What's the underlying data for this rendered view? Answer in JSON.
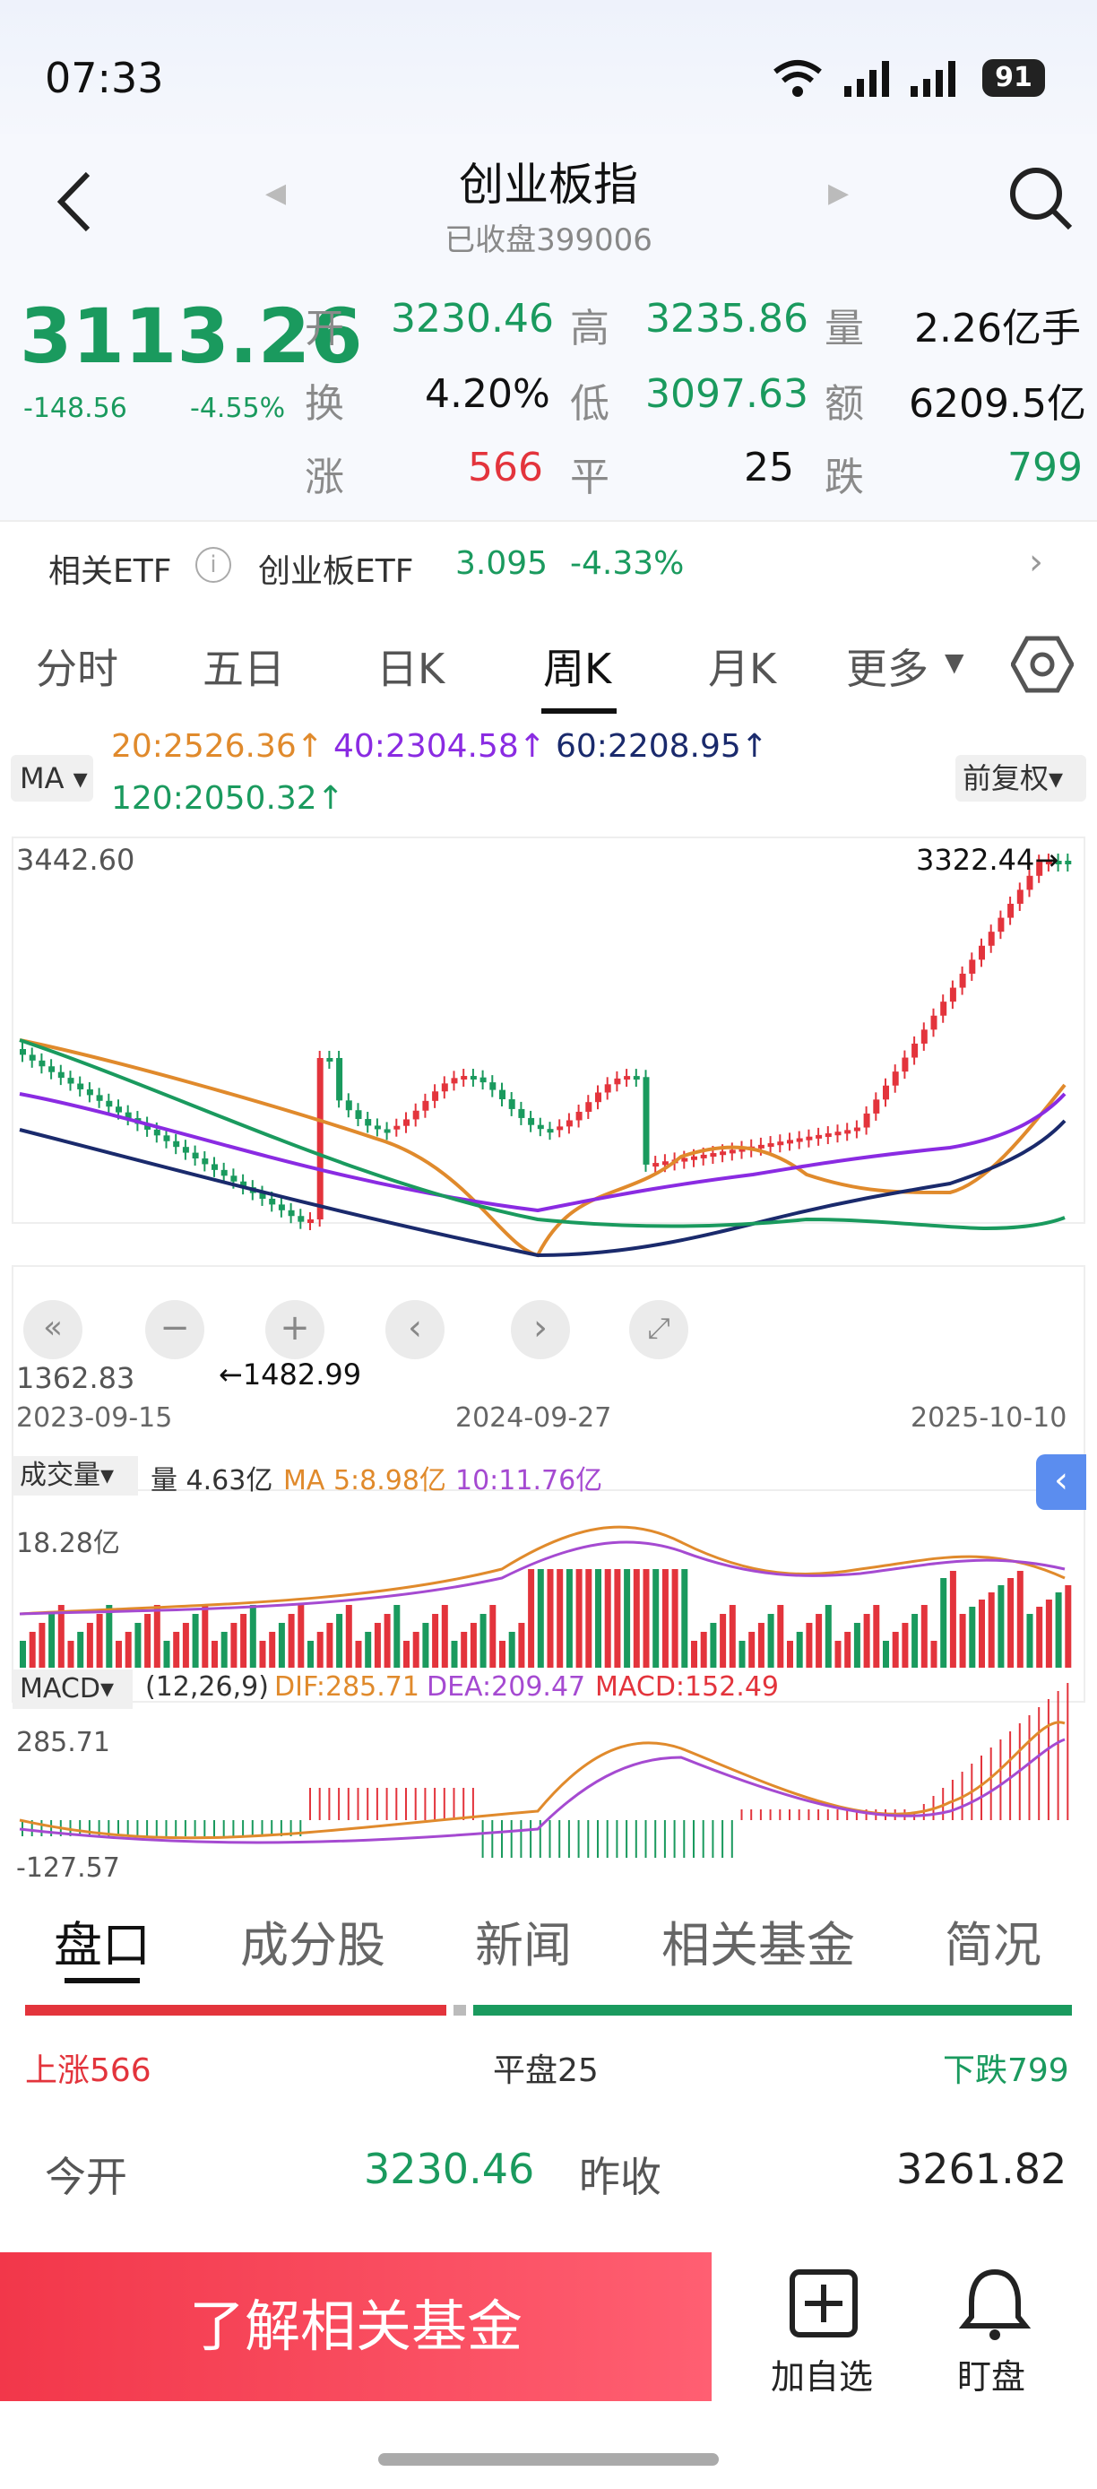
{
  "status": {
    "time": "07:33",
    "battery": "91"
  },
  "header": {
    "title": "创业板指",
    "subtitle": "已收盘399006"
  },
  "quote": {
    "price": "3113.26",
    "change": "-148.56",
    "pct": "-4.55%",
    "open_label": "开",
    "open": "3230.46",
    "high_label": "高",
    "high": "3235.86",
    "vol_label": "量",
    "vol": "2.26亿手",
    "turn_label": "换",
    "turn": "4.20%",
    "low_label": "低",
    "low": "3097.63",
    "amt_label": "额",
    "amt": "6209.5亿",
    "up_label": "涨",
    "up": "566",
    "flat_label": "平",
    "flat": "25",
    "down_label": "跌",
    "down": "799"
  },
  "etf": {
    "label": "相关ETF",
    "name": "创业板ETF",
    "price": "3.095",
    "pct": "-4.33%"
  },
  "tabs": [
    "分时",
    "五日",
    "日K",
    "周K",
    "月K",
    "更多"
  ],
  "ma": {
    "selector": "MA",
    "ma20": "20:2526.36↑",
    "ma40": "40:2304.58↑",
    "ma60": "60:2208.95↑",
    "ma120": "120:2050.32↑",
    "adjust": "前复权"
  },
  "kchart": {
    "high_label": "3442.60",
    "low_label": "1362.83",
    "max_mark": "3322.44→",
    "min_mark": "←1482.99",
    "date_left": "2023-09-15",
    "date_mid": "2024-09-27",
    "date_right": "2025-10-10"
  },
  "volume": {
    "selector": "成交量",
    "vol": "量 4.63亿",
    "ma5": "MA 5:8.98亿",
    "ma10": "10:11.76亿",
    "max": "18.28亿"
  },
  "macd": {
    "selector": "MACD",
    "params": "(12,26,9)",
    "dif": "DIF:285.71",
    "dea": "DEA:209.47",
    "macd": "MACD:152.49",
    "max": "285.71",
    "min": "-127.57"
  },
  "bottom_tabs": [
    "盘口",
    "成分股",
    "新闻",
    "相关基金",
    "简况"
  ],
  "breadth": {
    "up": "上涨566",
    "flat": "平盘25",
    "down": "下跌799"
  },
  "detail": {
    "open_label": "今开",
    "open": "3230.46",
    "prev_label": "昨收",
    "prev": "3261.82"
  },
  "footer": {
    "cta": "了解相关基金",
    "add": "加自选",
    "alert": "盯盘"
  },
  "colors": {
    "up": "#e3343c",
    "down": "#1a9a5e",
    "ma20": "#e08a2c",
    "ma40": "#8a2be2",
    "ma60": "#1a2a6c",
    "ma120": "#1a9a5e"
  }
}
